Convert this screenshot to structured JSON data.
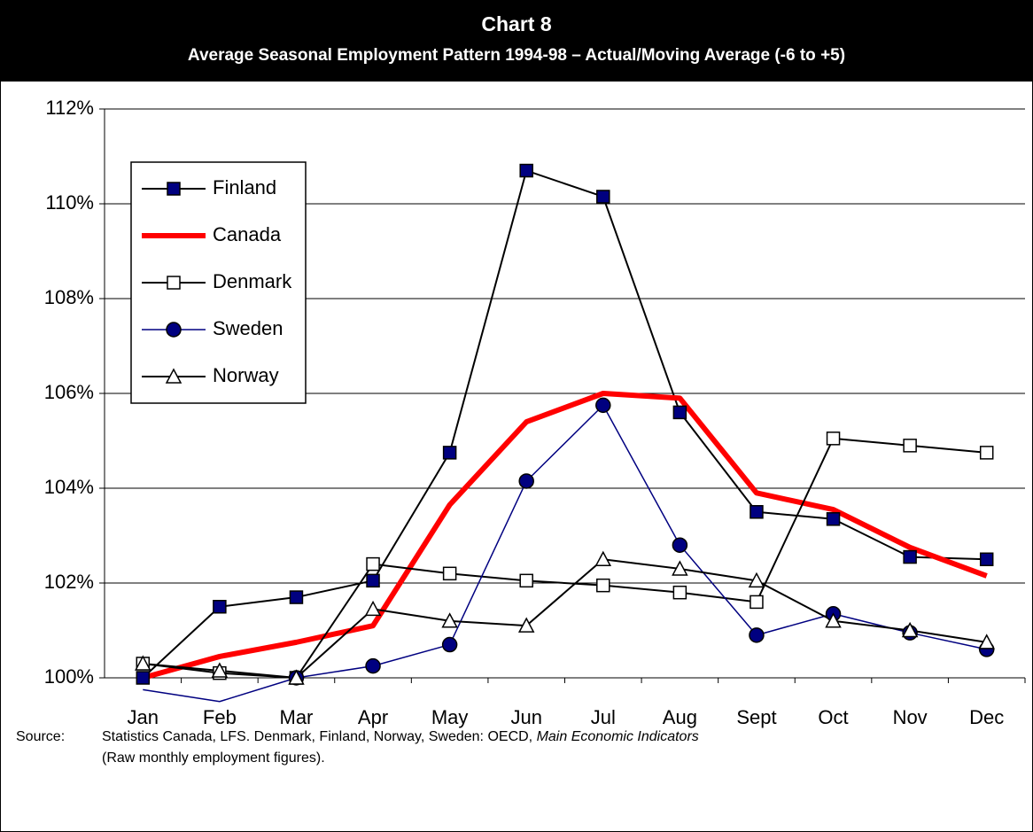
{
  "chart_data": {
    "type": "line",
    "title": "Chart 8",
    "subtitle": "Average Seasonal Employment Pattern 1994-98 – Actual/Moving Average (-6 to +5)",
    "categories": [
      "Jan",
      "Feb",
      "Mar",
      "Apr",
      "May",
      "Jun",
      "Jul",
      "Aug",
      "Sept",
      "Oct",
      "Nov",
      "Dec"
    ],
    "series": [
      {
        "name": "Finland",
        "color": "#000000",
        "marker": "square",
        "marker_fill": "#000080",
        "line_width": 2,
        "values": [
          100.0,
          101.5,
          101.7,
          102.05,
          104.75,
          110.7,
          110.15,
          105.6,
          103.5,
          103.35,
          102.55,
          102.5
        ]
      },
      {
        "name": "Canada",
        "color": "#ff0000",
        "marker": "none",
        "marker_fill": "#ff0000",
        "line_width": 6,
        "values": [
          100.0,
          100.45,
          100.75,
          101.1,
          103.65,
          105.4,
          106.0,
          105.9,
          103.9,
          103.55,
          102.75,
          102.15
        ]
      },
      {
        "name": "Denmark",
        "color": "#000000",
        "marker": "square",
        "marker_fill": "#ffffff",
        "line_width": 2,
        "values": [
          100.3,
          100.1,
          100.0,
          102.4,
          102.2,
          102.05,
          101.95,
          101.8,
          101.6,
          105.05,
          104.9,
          104.75
        ]
      },
      {
        "name": "Sweden",
        "color": "#000080",
        "marker": "circle",
        "marker_fill": "#000080",
        "line_width": 1.5,
        "values": [
          99.75,
          99.5,
          100.0,
          100.25,
          100.7,
          104.15,
          105.75,
          102.8,
          100.9,
          101.35,
          100.95,
          100.6
        ]
      },
      {
        "name": "Norway",
        "color": "#000000",
        "marker": "triangle",
        "marker_fill": "#ffffff",
        "line_width": 2,
        "values": [
          100.3,
          100.15,
          100.0,
          101.45,
          101.2,
          101.1,
          102.5,
          102.3,
          102.05,
          101.2,
          101.0,
          100.75
        ]
      }
    ],
    "ylim": [
      100,
      112
    ],
    "yticks": [
      {
        "value": 100,
        "label": "100%"
      },
      {
        "value": 102,
        "label": "102%"
      },
      {
        "value": 104,
        "label": "104%"
      },
      {
        "value": 106,
        "label": "106%"
      },
      {
        "value": 108,
        "label": "108%"
      },
      {
        "value": 110,
        "label": "110%"
      },
      {
        "value": 112,
        "label": "112%"
      }
    ],
    "grid": true,
    "legend": "upper-left",
    "source_label": "Source:",
    "source_text": "Statistics Canada, LFS. Denmark, Finland, Norway, Sweden: OECD,",
    "source_italic": "Main Economic Indicators",
    "source_line2": "(Raw monthly employment figures)."
  }
}
